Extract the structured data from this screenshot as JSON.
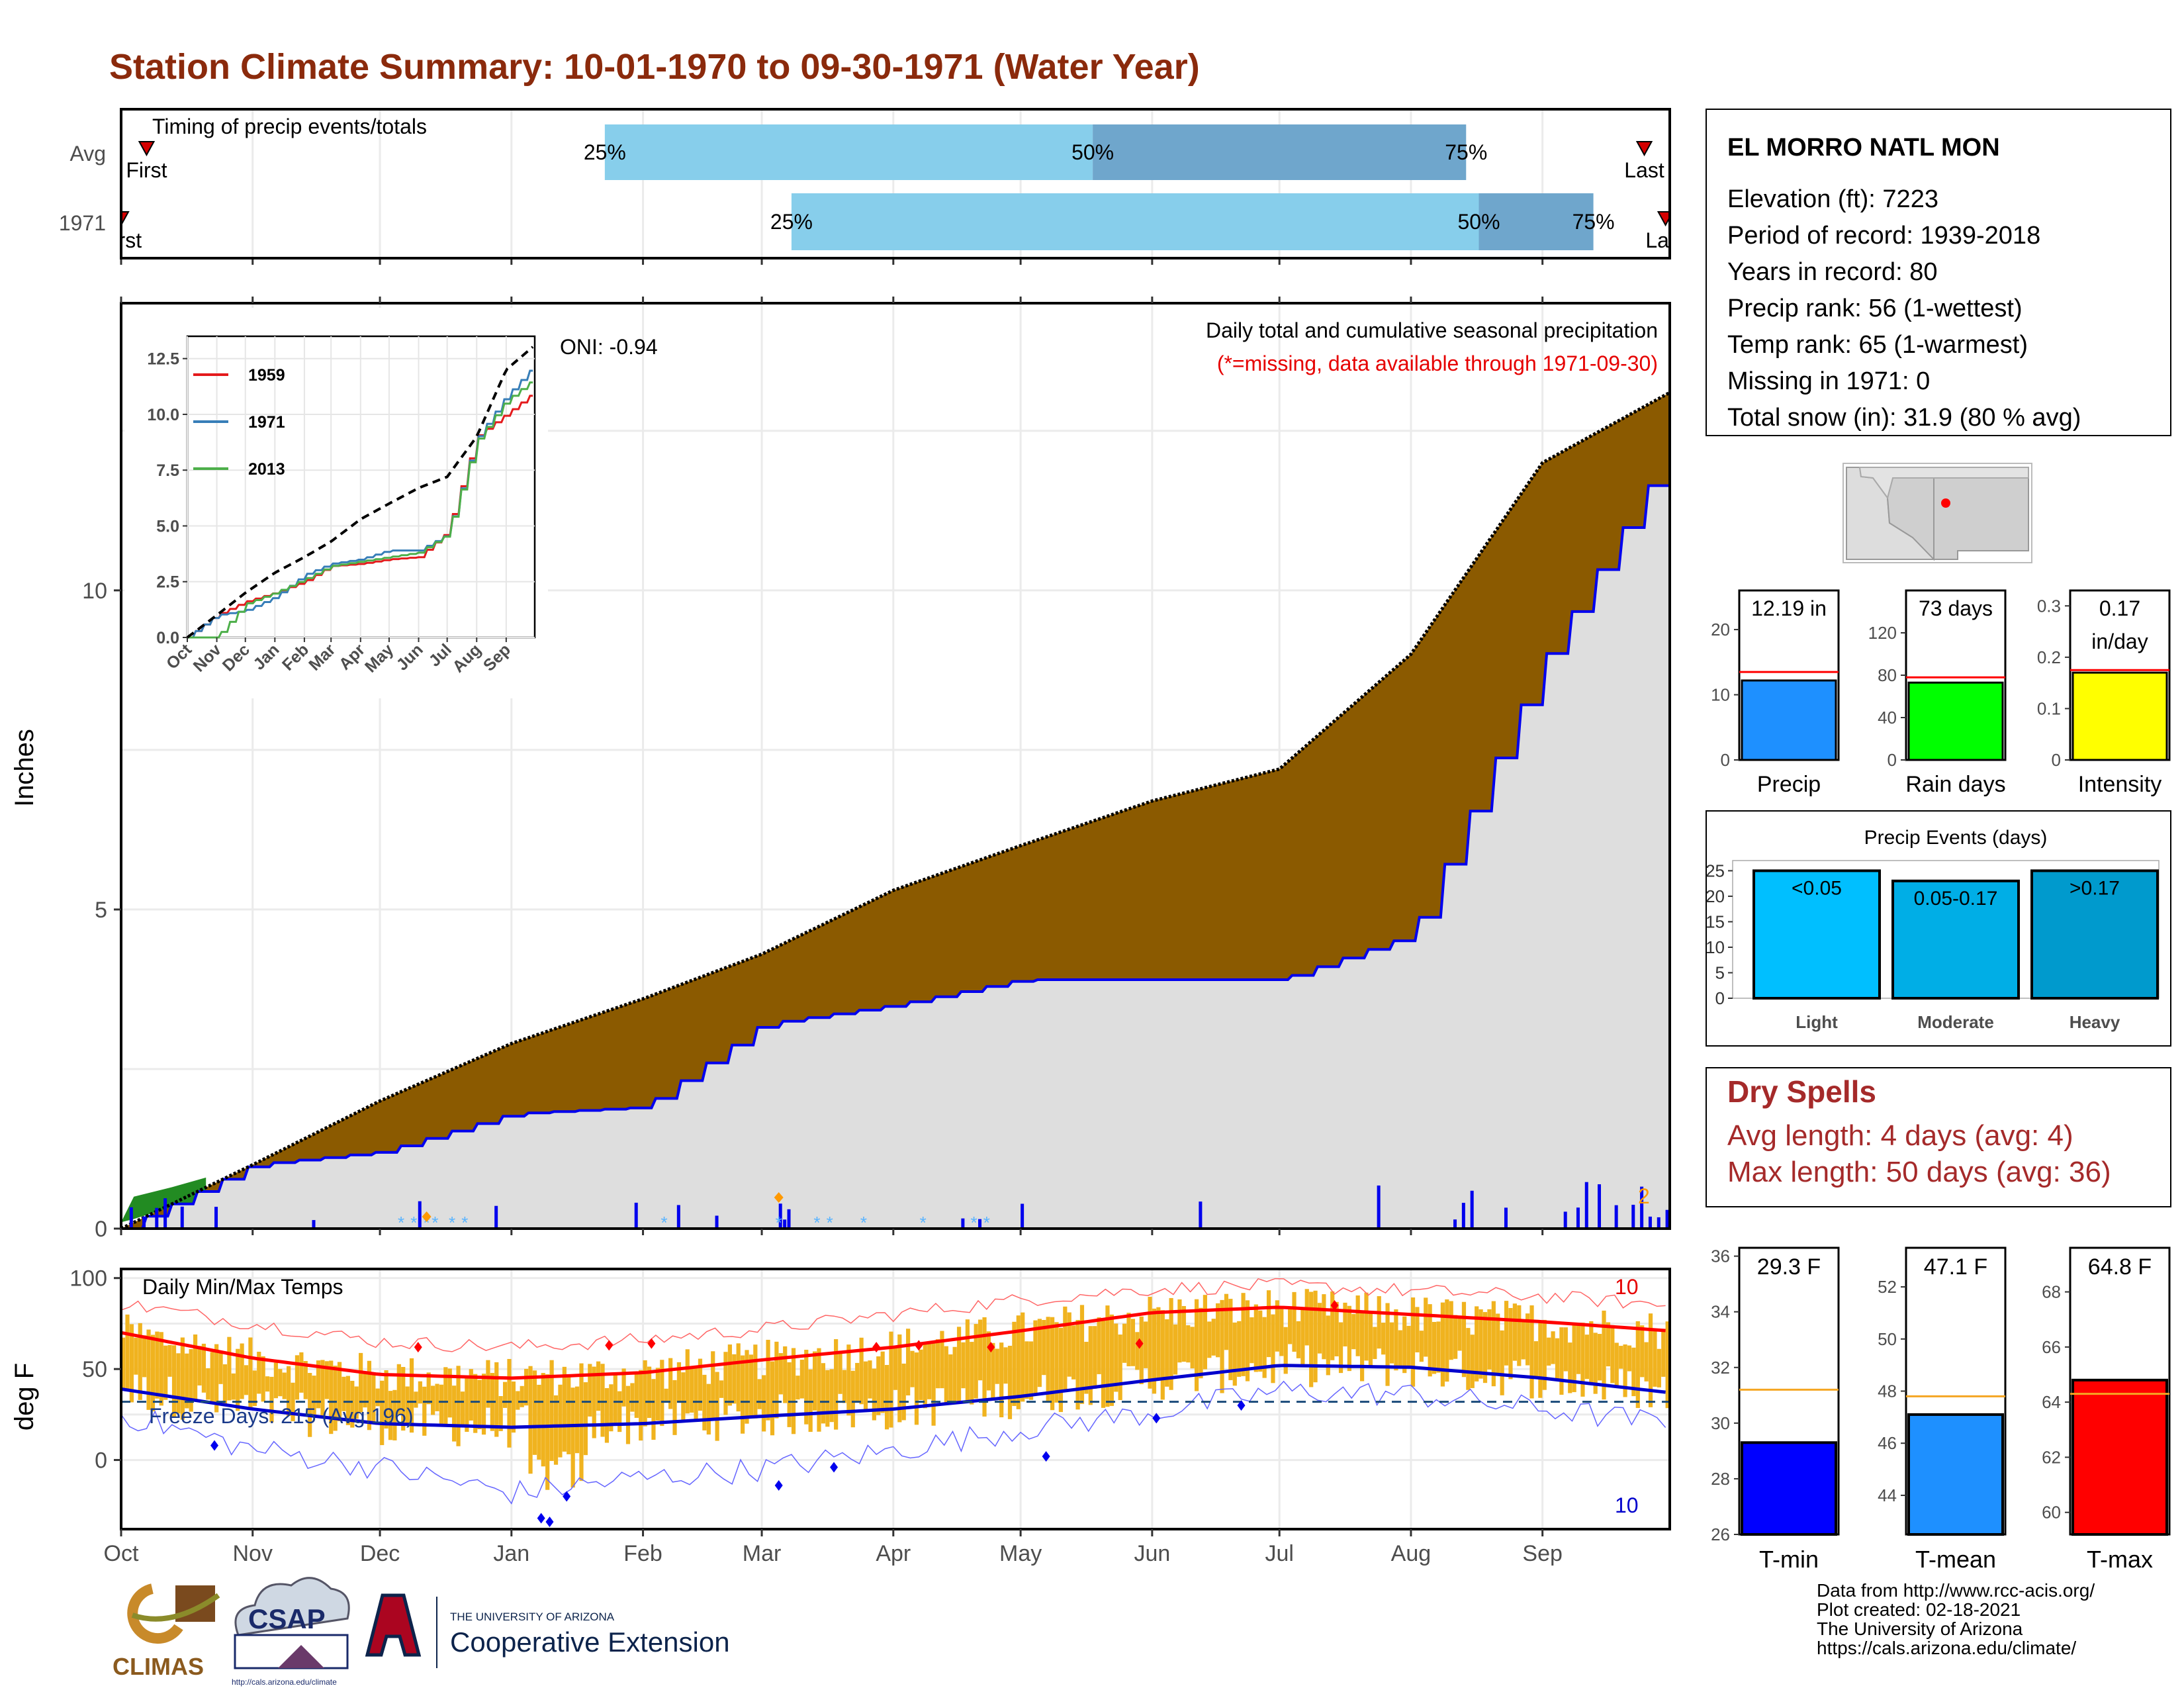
{
  "title": "Station Climate Summary: 10-01-1970 to 09-30-1971 (Water Year)",
  "timing": {
    "label": "Timing of precip events/totals",
    "rows": [
      {
        "name": "Avg",
        "first_label": "First",
        "last_label": "Last",
        "first_day": 6,
        "last_day": 359,
        "p25_day": 114,
        "p50_day": 229,
        "p75_day": 317,
        "p25_label": "25%",
        "p50_label": "50%",
        "p75_label": "75%"
      },
      {
        "name": "1971",
        "first_label": "First",
        "last_label": "Last",
        "first_day": 0,
        "last_day": 364,
        "p25_day": 158,
        "p50_day": 320,
        "p75_day": 347,
        "p25_label": "25%",
        "p50_label": "50%",
        "p75_label": "75%"
      }
    ],
    "colors": {
      "light": "#87ceeb",
      "dark": "#6fa6cc",
      "marker": "#d40000"
    }
  },
  "precip_panel": {
    "ylabel": "Inches",
    "annotation": "Daily total and cumulative seasonal precipitation",
    "missing_note": "(*=missing, data available through 1971-09-30)",
    "oni": "ONI: -0.94",
    "corner_count": "2",
    "ylim": [
      0,
      14.5
    ],
    "yticks": [
      "0",
      "5",
      "10"
    ],
    "months": [
      "Oct",
      "Nov",
      "Dec",
      "Jan",
      "Feb",
      "Mar",
      "Apr",
      "May",
      "Jun",
      "Jul",
      "Aug",
      "Sep"
    ],
    "colors": {
      "fill_surplus": "#228b22",
      "fill_deficit": "#8b5a00",
      "obs_fill": "#dedede",
      "obs_line": "#0000ee",
      "avg_line": "#000000"
    }
  },
  "inset": {
    "months": [
      "Oct",
      "Nov",
      "Dec",
      "Jan",
      "Feb",
      "Mar",
      "Apr",
      "May",
      "Jun",
      "Jul",
      "Aug",
      "Sep"
    ],
    "yticks": [
      "0.0",
      "2.5",
      "5.0",
      "7.5",
      "10.0",
      "12.5"
    ],
    "legend": [
      {
        "label": "1959",
        "color": "#e41a1c"
      },
      {
        "label": "1971",
        "color": "#377eb8"
      },
      {
        "label": "2013",
        "color": "#4daf4a"
      }
    ]
  },
  "temp_panel": {
    "label": "Daily Min/Max Temps",
    "ylabel": "deg F",
    "freeze_label": "Freeze Days: 215 (Avg:196)",
    "count_max": "10",
    "count_min": "10",
    "yticks": [
      "0",
      "50",
      "100"
    ],
    "months": [
      "Oct",
      "Nov",
      "Dec",
      "Jan",
      "Feb",
      "Mar",
      "Apr",
      "May",
      "Jun",
      "Jul",
      "Aug",
      "Sep"
    ]
  },
  "station": {
    "name": "EL MORRO NATL MON",
    "lines": [
      "Elevation (ft): 7223",
      "Period of record: 1939-2018",
      "Years in record: 80",
      "Precip rank: 56 (1-wettest)",
      "Temp rank: 65 (1-warmest)",
      "Missing in 1971: 0",
      "Total snow (in): 31.9 (80 % avg)"
    ]
  },
  "summary_bars": [
    {
      "label": "Precip",
      "value_label": "12.19 in",
      "value": 12.19,
      "avg": 13.5,
      "ymax": 26,
      "ticks": [
        0,
        10,
        20
      ],
      "color": "#1e90ff"
    },
    {
      "label": "Rain days",
      "value_label": "73 days",
      "value": 73,
      "avg": 78,
      "ymax": 160,
      "ticks": [
        0,
        40,
        80,
        120
      ],
      "color": "#00ff00"
    },
    {
      "label": "Intensity",
      "value_label": "0.17",
      "value_label2": "in/day",
      "value": 0.17,
      "avg": 0.175,
      "ymax": 0.33,
      "ticks": [
        0.0,
        0.1,
        0.2,
        0.3
      ],
      "color": "#ffff00"
    }
  ],
  "precip_events": {
    "title": "Precip Events (days)",
    "yticks": [
      0,
      5,
      10,
      15,
      20,
      25
    ],
    "bars": [
      {
        "category": "Light",
        "range": "<0.05",
        "value": 25,
        "color": "#00bfff"
      },
      {
        "category": "Moderate",
        "range": "0.05-0.17",
        "value": 23,
        "color": "#00aee6"
      },
      {
        "category": "Heavy",
        "range": ">0.17",
        "value": 25,
        "color": "#009acd"
      }
    ]
  },
  "dry_spells": {
    "title": "Dry Spells",
    "avg_line": "Avg length: 4 days (avg: 4)",
    "max_line": "Max length: 50 days (avg: 36)"
  },
  "temp_bars": [
    {
      "label": "T-min",
      "value_label": "29.3 F",
      "value": 29.3,
      "avg": 31.2,
      "ymin": 26,
      "ymax": 36.3,
      "ticks": [
        26,
        28,
        30,
        32,
        34,
        36
      ],
      "color": "#0000ff"
    },
    {
      "label": "T-mean",
      "value_label": "47.1 F",
      "value": 47.1,
      "avg": 47.8,
      "ymin": 42.5,
      "ymax": 53.5,
      "ticks": [
        44,
        46,
        48,
        50,
        52
      ],
      "color": "#1e90ff"
    },
    {
      "label": "T-max",
      "value_label": "64.8 F",
      "value": 64.8,
      "avg": 64.3,
      "ymin": 59.2,
      "ymax": 69.6,
      "ticks": [
        60,
        62,
        64,
        66,
        68
      ],
      "color": "#ff0000"
    }
  ],
  "logos": {
    "climas": "CLIMAS",
    "csap": "CSAP",
    "csap_url": "http://cals.arizona.edu/climate",
    "ua_small": "THE UNIVERSITY OF ARIZONA",
    "ua_big": "Cooperative Extension"
  },
  "credits": [
    "Data from http://www.rcc-acis.org/",
    "Plot created: 02-18-2021",
    "The University of Arizona",
    "https://cals.arizona.edu/climate/"
  ],
  "chart_data": [
    {
      "type": "bar",
      "title": "Timing of precip events/totals",
      "categories": [
        "Avg",
        "1971"
      ],
      "series": [
        {
          "name": "25%",
          "values": [
            114,
            158
          ]
        },
        {
          "name": "50%",
          "values": [
            229,
            320
          ]
        },
        {
          "name": "75%",
          "values": [
            317,
            347
          ]
        }
      ]
    },
    {
      "type": "area",
      "title": "Daily total and cumulative seasonal precipitation",
      "ylabel": "Inches",
      "ylim": [
        0,
        14.5
      ],
      "x": [
        "Oct",
        "Nov",
        "Dec",
        "Jan",
        "Feb",
        "Mar",
        "Apr",
        "May",
        "Jun",
        "Jul",
        "Aug",
        "Sep",
        "Sep-30"
      ],
      "series": [
        {
          "name": "avg_cumulative",
          "values": [
            0,
            1.0,
            2.0,
            2.9,
            3.6,
            4.3,
            5.3,
            6.0,
            6.7,
            7.2,
            9.0,
            12.0,
            13.1
          ]
        },
        {
          "name": "obs_cumulative",
          "values": [
            0,
            1.0,
            1.2,
            1.8,
            1.9,
            3.2,
            3.5,
            3.9,
            3.9,
            3.9,
            4.6,
            8.9,
            12.19
          ]
        }
      ]
    },
    {
      "type": "line",
      "title": "",
      "x": [
        "Oct",
        "Nov",
        "Dec",
        "Jan",
        "Feb",
        "Mar",
        "Apr",
        "May",
        "Jun",
        "Jul",
        "Aug",
        "Sep",
        "Sep-30"
      ],
      "ylim": [
        0,
        13.5
      ],
      "series": [
        {
          "name": "1959",
          "values": [
            0,
            1.0,
            1.6,
            2.0,
            2.5,
            3.2,
            3.3,
            3.5,
            3.6,
            4.7,
            9.0,
            10.0,
            11.0
          ]
        },
        {
          "name": "1971",
          "values": [
            0,
            1.0,
            1.2,
            1.8,
            2.8,
            3.3,
            3.5,
            3.9,
            3.9,
            4.6,
            8.9,
            10.8,
            12.19
          ]
        },
        {
          "name": "2013",
          "values": [
            0,
            0.0,
            1.5,
            2.0,
            2.6,
            3.2,
            3.4,
            3.6,
            3.8,
            4.6,
            8.8,
            10.6,
            11.6
          ]
        },
        {
          "name": "avg",
          "values": [
            0,
            1.0,
            2.0,
            2.9,
            3.6,
            4.3,
            5.3,
            6.0,
            6.7,
            7.2,
            9.0,
            12.0,
            13.1
          ]
        }
      ]
    },
    {
      "type": "line",
      "title": "Daily Min/Max Temps",
      "ylabel": "deg F",
      "ylim": [
        -38,
        105
      ],
      "x": [
        "Oct",
        "Nov",
        "Dec",
        "Jan",
        "Feb",
        "Mar",
        "Apr",
        "May",
        "Jun",
        "Jul",
        "Aug",
        "Sep",
        "Sep-30"
      ],
      "series": [
        {
          "name": "avg_max",
          "values": [
            70,
            56,
            47,
            45,
            48,
            55,
            62,
            71,
            81,
            84,
            80,
            76,
            71
          ]
        },
        {
          "name": "avg_min",
          "values": [
            39,
            28,
            20,
            18,
            20,
            24,
            28,
            35,
            44,
            52,
            51,
            45,
            37
          ]
        },
        {
          "name": "record_max",
          "values": [
            86,
            75,
            65,
            62,
            66,
            72,
            80,
            88,
            94,
            96,
            93,
            90,
            85
          ]
        },
        {
          "name": "record_min",
          "values": [
            25,
            6,
            -4,
            -18,
            -10,
            -5,
            5,
            17,
            26,
            38,
            36,
            28,
            20
          ]
        }
      ]
    }
  ]
}
